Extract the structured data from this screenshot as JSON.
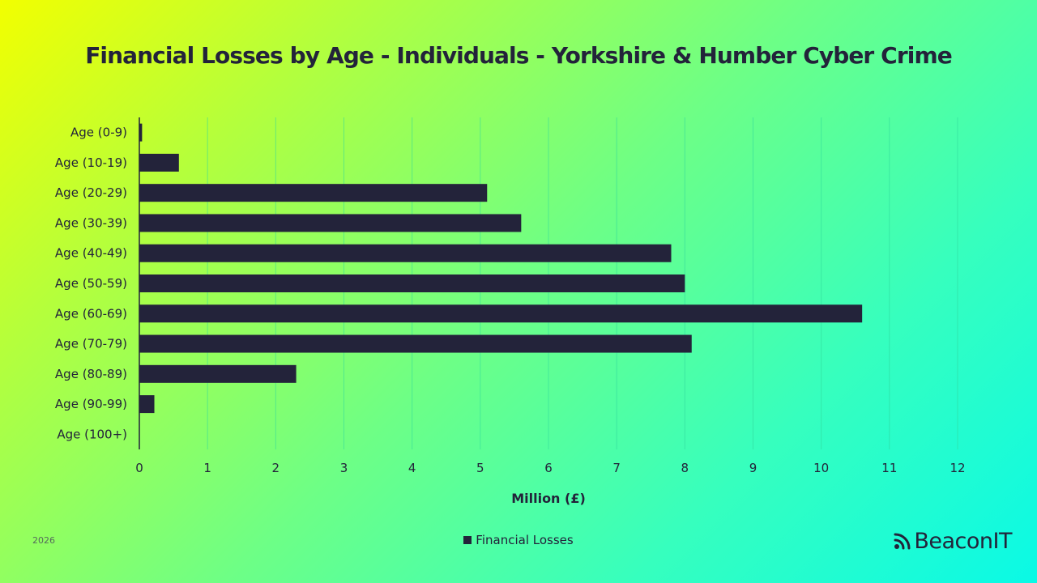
{
  "chart_data": {
    "type": "bar",
    "orientation": "horizontal",
    "title": "Financial Losses by Age - Individuals - Yorkshire & Humber Cyber Crime",
    "xlabel": "Million (£)",
    "ylabel": "",
    "categories": [
      "Age (0-9)",
      "Age (10-19)",
      "Age (20-29)",
      "Age (30-39)",
      "Age (40-49)",
      "Age (50-59)",
      "Age (60-69)",
      "Age (70-79)",
      "Age (80-89)",
      "Age (90-99)",
      "Age (100+)"
    ],
    "series": [
      {
        "name": "Financial Losses",
        "values": [
          0.04,
          0.58,
          5.1,
          5.6,
          7.8,
          8.0,
          10.6,
          8.1,
          2.3,
          0.22,
          0
        ]
      }
    ],
    "xlim": [
      0,
      12
    ],
    "xticks": [
      "0",
      "1",
      "2",
      "3",
      "4",
      "5",
      "6",
      "7",
      "8",
      "9",
      "10",
      "11",
      "12"
    ],
    "grid": true,
    "legend_position": "bottom",
    "bar_color": "#23233a"
  },
  "footer": {
    "year": "2026",
    "brand": "BeaconIT",
    "brand_icon": "rss-icon"
  }
}
